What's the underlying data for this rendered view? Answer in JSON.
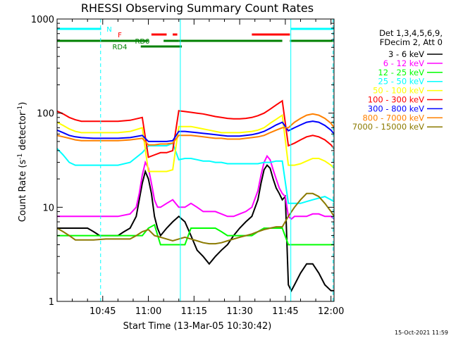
{
  "page": {
    "title": "RHESSI Observing Summary Count Rates",
    "footer_stamp": "15-Oct-2021 11:59"
  },
  "chart_data": {
    "type": "line",
    "title": "RHESSI Observing Summary Count Rates",
    "xlabel": "Start Time (13-Mar-05 10:30:42)",
    "ylabel_main": "Count Rate (s",
    "ylabel_sup1": "-1",
    "ylabel_mid": " detector",
    "ylabel_sup2": "-1",
    "ylabel_end": ")",
    "y_scale": "log",
    "x_range_min": [
      30,
      121
    ],
    "ylim": [
      1,
      1000
    ],
    "x_ticks": [
      {
        "min": 45,
        "label": "10:45"
      },
      {
        "min": 60,
        "label": "11:00"
      },
      {
        "min": 75,
        "label": "11:15"
      },
      {
        "min": 90,
        "label": "11:30"
      },
      {
        "min": 105,
        "label": "11:45"
      },
      {
        "min": 120,
        "label": "12:00"
      }
    ],
    "y_ticks": [
      {
        "v": 1,
        "label": "1"
      },
      {
        "v": 10,
        "label": "10"
      },
      {
        "v": 100,
        "label": "100"
      },
      {
        "v": 1000,
        "label": "1000"
      }
    ],
    "legend_header": [
      "Det 1,3,4,5,6,9,",
      "FDecim 2, Att 0"
    ],
    "legend_position": "right",
    "series": [
      {
        "name": "3 - 6 keV",
        "color": "#000000",
        "x": [
          30,
          35,
          38,
          40,
          42,
          44,
          46,
          48,
          50,
          52,
          54,
          56,
          57,
          58,
          59,
          60,
          61,
          62,
          63,
          64,
          66,
          68,
          70,
          72,
          74,
          76,
          78,
          80,
          82,
          84,
          86,
          88,
          90,
          92,
          94,
          96,
          97,
          98,
          99,
          100,
          101,
          102,
          103,
          104,
          105,
          106,
          107,
          108,
          110,
          112,
          114,
          116,
          118,
          120,
          121
        ],
        "y": [
          6,
          6,
          6,
          6,
          5.5,
          5,
          5,
          5,
          5,
          5.5,
          6,
          8,
          12,
          18,
          24,
          20,
          14,
          8,
          6,
          5,
          6,
          7,
          8,
          7,
          5,
          3.5,
          3,
          2.5,
          3,
          3.5,
          4,
          5,
          6,
          7,
          8,
          12,
          18,
          25,
          28,
          26,
          20,
          16,
          14,
          12,
          13,
          1.5,
          1.3,
          1.5,
          2,
          2.5,
          2.5,
          2,
          1.5,
          1.3,
          1.3
        ]
      },
      {
        "name": "6 - 12 keV",
        "color": "#ff00ff",
        "x": [
          30,
          34,
          38,
          42,
          46,
          50,
          54,
          56,
          57,
          58,
          59,
          60,
          61,
          62,
          63,
          64,
          66,
          68,
          70,
          72,
          74,
          76,
          78,
          80,
          82,
          84,
          86,
          88,
          90,
          92,
          94,
          96,
          97,
          98,
          99,
          100,
          101,
          102,
          103,
          104,
          105,
          106,
          107,
          108,
          110,
          112,
          114,
          116,
          118,
          120,
          121
        ],
        "y": [
          8,
          8,
          8,
          8,
          8,
          8,
          8.5,
          10,
          14,
          22,
          30,
          26,
          18,
          12,
          10,
          10,
          11,
          12,
          10,
          10,
          11,
          10,
          9,
          9,
          9,
          8.5,
          8,
          8,
          8.5,
          9,
          10,
          15,
          22,
          30,
          35,
          32,
          25,
          20,
          16,
          14,
          13,
          8,
          7.5,
          8,
          8,
          8,
          8.5,
          8.5,
          8,
          8,
          7.5
        ]
      },
      {
        "name": "12 - 25 keV",
        "color": "#00ff00",
        "x": [
          30,
          34,
          38,
          42,
          46,
          50,
          54,
          58,
          60,
          62,
          64,
          66,
          68,
          70,
          72,
          74,
          76,
          78,
          80,
          82,
          84,
          86,
          88,
          90,
          92,
          94,
          96,
          98,
          100,
          102,
          104,
          106,
          108,
          110,
          112,
          114,
          116,
          118,
          120,
          121
        ],
        "y": [
          5,
          5,
          5,
          5,
          5,
          5,
          5,
          5,
          6,
          6.5,
          4,
          4,
          4,
          4,
          4,
          6,
          6,
          6,
          6,
          6,
          5.5,
          5,
          5,
          5,
          5,
          5,
          5.5,
          6,
          6,
          6,
          6,
          4,
          4,
          4,
          4,
          4,
          4,
          4,
          4,
          4
        ]
      },
      {
        "name": "25 - 50 keV",
        "color": "#00ffff",
        "x": [
          30,
          32,
          34,
          36,
          38,
          42,
          46,
          50,
          54,
          58,
          60,
          62,
          64,
          66,
          68,
          70,
          72,
          74,
          76,
          78,
          80,
          82,
          84,
          86,
          88,
          90,
          92,
          94,
          96,
          98,
          100,
          102,
          104,
          106,
          108,
          110,
          112,
          114,
          116,
          118,
          120,
          121
        ],
        "y": [
          42,
          36,
          30,
          28,
          28,
          28,
          28,
          28,
          30,
          38,
          45,
          45,
          45,
          45,
          48,
          32,
          33,
          33,
          32,
          31,
          31,
          30,
          30,
          29,
          29,
          29,
          29,
          29,
          29,
          30,
          30,
          31,
          31,
          11,
          11,
          11,
          11.5,
          12,
          12.5,
          13,
          12,
          11.5
        ]
      },
      {
        "name": "50 - 100 keV",
        "color": "#ffff00",
        "x": [
          30,
          32,
          34,
          36,
          38,
          42,
          46,
          50,
          54,
          58,
          60,
          62,
          64,
          66,
          68,
          70,
          72,
          74,
          76,
          78,
          80,
          82,
          84,
          86,
          88,
          90,
          92,
          94,
          96,
          98,
          100,
          102,
          104,
          106,
          108,
          110,
          112,
          114,
          116,
          118,
          120,
          121
        ],
        "y": [
          80,
          74,
          68,
          64,
          62,
          62,
          62,
          62,
          64,
          70,
          24,
          24,
          24,
          24,
          25,
          72,
          72,
          72,
          70,
          68,
          66,
          64,
          62,
          62,
          62,
          62,
          63,
          64,
          66,
          70,
          78,
          86,
          95,
          28,
          28,
          29,
          31,
          33,
          33,
          31,
          28,
          26
        ]
      },
      {
        "name": "100 - 300 keV",
        "color": "#ff0000",
        "x": [
          30,
          32,
          34,
          36,
          38,
          42,
          46,
          50,
          54,
          58,
          60,
          62,
          64,
          66,
          68,
          70,
          72,
          74,
          76,
          78,
          80,
          82,
          84,
          86,
          88,
          90,
          92,
          94,
          96,
          98,
          100,
          102,
          104,
          106,
          108,
          110,
          112,
          114,
          116,
          118,
          120,
          121
        ],
        "y": [
          105,
          98,
          90,
          85,
          82,
          82,
          82,
          82,
          84,
          90,
          34,
          36,
          38,
          38,
          40,
          106,
          104,
          102,
          100,
          98,
          95,
          92,
          90,
          88,
          87,
          87,
          88,
          90,
          94,
          100,
          110,
          122,
          135,
          45,
          48,
          52,
          56,
          58,
          56,
          52,
          46,
          42
        ]
      },
      {
        "name": "300 - 800 keV",
        "color": "#0000ff",
        "x": [
          30,
          32,
          34,
          36,
          38,
          42,
          46,
          50,
          54,
          58,
          60,
          62,
          64,
          66,
          68,
          70,
          72,
          74,
          76,
          78,
          80,
          82,
          84,
          86,
          88,
          90,
          92,
          94,
          96,
          98,
          100,
          102,
          104,
          106,
          108,
          110,
          112,
          114,
          116,
          118,
          120,
          121
        ],
        "y": [
          66,
          62,
          58,
          56,
          55,
          54,
          54,
          54,
          55,
          58,
          50,
          50,
          50,
          50,
          51,
          64,
          64,
          63,
          62,
          61,
          60,
          59,
          58,
          57,
          57,
          57,
          58,
          59,
          61,
          64,
          69,
          75,
          80,
          65,
          70,
          75,
          80,
          82,
          80,
          74,
          66,
          60
        ]
      },
      {
        "name": "800 - 7000 keV",
        "color": "#ff8000",
        "x": [
          30,
          32,
          34,
          36,
          38,
          42,
          46,
          50,
          54,
          58,
          60,
          62,
          64,
          66,
          68,
          70,
          72,
          74,
          76,
          78,
          80,
          82,
          84,
          86,
          88,
          90,
          92,
          94,
          96,
          98,
          100,
          102,
          104,
          106,
          108,
          110,
          112,
          114,
          116,
          118,
          120,
          121
        ],
        "y": [
          58,
          56,
          54,
          52,
          51,
          51,
          51,
          51,
          52,
          54,
          46,
          46,
          47,
          47,
          48,
          58,
          58,
          58,
          57,
          56,
          55,
          54,
          54,
          53,
          53,
          53,
          54,
          55,
          56,
          58,
          62,
          66,
          70,
          70,
          80,
          88,
          95,
          98,
          95,
          88,
          78,
          70
        ]
      },
      {
        "name": "7000 - 15000 keV",
        "color": "#8b7a00",
        "x": [
          30,
          32,
          34,
          36,
          38,
          42,
          46,
          50,
          54,
          56,
          58,
          60,
          62,
          64,
          66,
          68,
          70,
          72,
          74,
          76,
          78,
          80,
          82,
          84,
          86,
          88,
          90,
          92,
          94,
          96,
          98,
          100,
          102,
          104,
          106,
          108,
          110,
          112,
          114,
          116,
          118,
          120,
          121
        ],
        "y": [
          6,
          5.5,
          5,
          4.5,
          4.5,
          4.5,
          4.6,
          4.6,
          4.6,
          5,
          5.5,
          5.8,
          5,
          4.8,
          4.6,
          4.4,
          4.6,
          4.8,
          4.6,
          4.4,
          4.2,
          4.1,
          4.1,
          4.2,
          4.4,
          4.6,
          4.8,
          5,
          5.2,
          5.5,
          5.8,
          6,
          6.2,
          6.2,
          8,
          10,
          12,
          14,
          14,
          13,
          11,
          9,
          8
        ]
      }
    ],
    "flags": [
      {
        "label": "N",
        "color": "#00ffff",
        "ranges": [
          [
            30,
            44.5
          ],
          [
            106.8,
            121
          ]
        ]
      },
      {
        "label": "F",
        "color": "#ff0000",
        "ranges": [
          [
            61,
            66
          ],
          [
            68,
            69.5
          ],
          [
            94,
            106.5
          ]
        ]
      },
      {
        "label": "RD0",
        "color": "#008000",
        "ranges": [
          [
            30,
            60
          ],
          [
            65,
            70
          ],
          [
            70,
            104
          ],
          [
            106.5,
            121
          ]
        ]
      },
      {
        "label": "RD4",
        "color": "#008000",
        "ranges": [
          [
            57.5,
            71
          ]
        ]
      }
    ],
    "vertical_markers": [
      {
        "min": 44.3,
        "color": "#00ffff",
        "style": "dashed"
      },
      {
        "min": 70.5,
        "color": "#00ffff",
        "style": "solid"
      },
      {
        "min": 106.8,
        "color": "#00ffff",
        "style": "solid"
      },
      {
        "min": 120.7,
        "color": "#00ffff",
        "style": "dashed"
      }
    ]
  }
}
